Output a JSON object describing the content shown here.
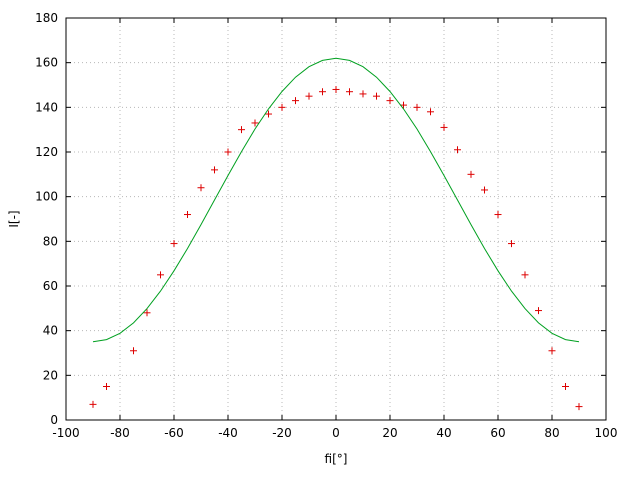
{
  "chart_data": {
    "type": "scatter",
    "title": "",
    "xlabel": "fi[°]",
    "ylabel": "I[-]",
    "xlim": [
      -100,
      100
    ],
    "ylim": [
      0,
      180
    ],
    "xticks": [
      -100,
      -80,
      -60,
      -40,
      -20,
      0,
      20,
      40,
      60,
      80,
      100
    ],
    "yticks": [
      0,
      20,
      40,
      60,
      80,
      100,
      120,
      140,
      160,
      180
    ],
    "grid": true,
    "legend": "none",
    "colors": {
      "measured": "#dd0000",
      "curve": "#00a020",
      "grid": "#b8b8b8",
      "axis": "#000000"
    },
    "series": [
      {
        "name": "measured",
        "type": "scatter",
        "marker": "plus",
        "x": [
          -90,
          -85,
          -75,
          -70,
          -65,
          -60,
          -55,
          -50,
          -45,
          -40,
          -35,
          -30,
          -25,
          -20,
          -15,
          -10,
          -5,
          0,
          5,
          10,
          15,
          20,
          25,
          30,
          35,
          40,
          45,
          50,
          55,
          60,
          65,
          70,
          75,
          80,
          85,
          90
        ],
        "y": [
          7,
          15,
          31,
          48,
          65,
          79,
          92,
          104,
          112,
          120,
          130,
          133,
          137,
          140,
          143,
          145,
          147,
          148,
          147,
          146,
          145,
          143,
          141,
          140,
          138,
          131,
          121,
          110,
          103,
          92,
          79,
          65,
          49,
          31,
          15,
          6
        ]
      },
      {
        "name": "curve",
        "type": "line",
        "x": [
          -90,
          -85,
          -80,
          -75,
          -70,
          -65,
          -60,
          -55,
          -50,
          -45,
          -40,
          -35,
          -30,
          -25,
          -20,
          -15,
          -10,
          -5,
          0,
          5,
          10,
          15,
          20,
          25,
          30,
          35,
          40,
          45,
          50,
          55,
          60,
          65,
          70,
          75,
          80,
          85,
          90
        ],
        "y": [
          35,
          36,
          38.8,
          43.5,
          49.9,
          57.7,
          66.8,
          76.8,
          87.5,
          98.5,
          109.5,
          120.2,
          130.3,
          139.3,
          147.1,
          153.5,
          158.2,
          161,
          162,
          161,
          158.2,
          153.5,
          147.1,
          139.3,
          130.3,
          120.2,
          109.5,
          98.5,
          87.5,
          76.8,
          66.8,
          57.7,
          49.9,
          43.5,
          38.8,
          36,
          35
        ]
      }
    ]
  }
}
